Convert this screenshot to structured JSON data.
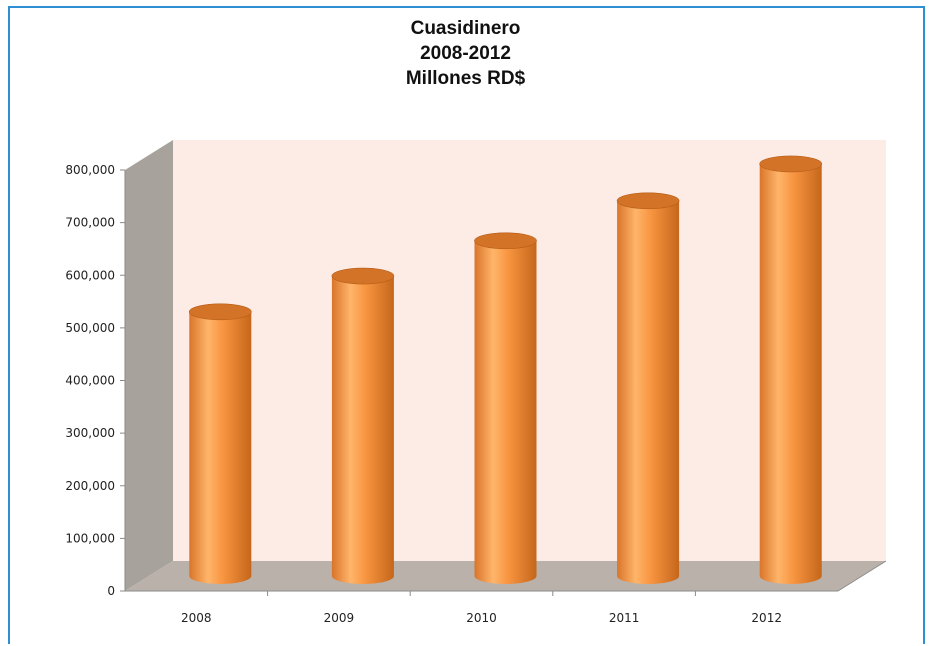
{
  "chart_data": {
    "type": "bar",
    "title": "Cuasidinero",
    "subtitle": "2008-2012",
    "unit_line": "Millones RD$",
    "categories": [
      "2008",
      "2009",
      "2010",
      "2011",
      "2012"
    ],
    "values": [
      502000,
      570000,
      637000,
      713000,
      783000
    ],
    "ylim": [
      0,
      800000
    ],
    "y_ticks": [
      "0",
      "100,000",
      "200,000",
      "300,000",
      "400,000",
      "500,000",
      "600,000",
      "700,000",
      "800,000"
    ],
    "xlabel": "",
    "ylabel": "",
    "bar_style": "3d-cylinder",
    "grid": false,
    "legend": "none",
    "colors": {
      "bar_light": "#ffb56a",
      "bar_mid": "#f79440",
      "bar_dark": "#c5661a",
      "bar_top": "#d27328",
      "back_wall": "#fdece6",
      "side_wall": "#a8a29c",
      "floor": "#b9b1aa",
      "frame": "#2f8fd3"
    }
  }
}
